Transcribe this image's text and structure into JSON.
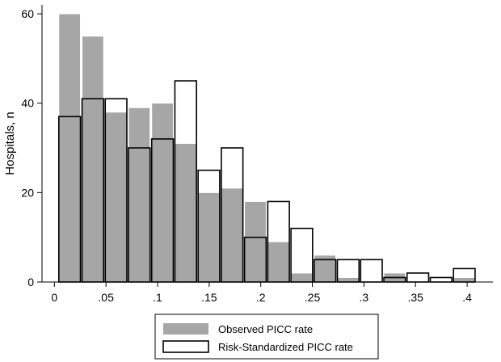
{
  "chart_data": {
    "type": "bar",
    "title": "",
    "xlabel": "",
    "ylabel": "Hospitals, n",
    "xlim": [
      -0.012,
      0.425
    ],
    "ylim": [
      0,
      62
    ],
    "bin_width": 0.0225,
    "bin_start": 0.0035,
    "x_ticks": [
      0,
      0.05,
      0.1,
      0.15,
      0.2,
      0.25,
      0.3,
      0.35,
      0.4
    ],
    "x_tick_labels": [
      "0",
      ".05",
      ".1",
      ".15",
      ".2",
      ".25",
      ".3",
      ".35",
      ".4"
    ],
    "y_ticks": [
      0,
      20,
      40,
      60
    ],
    "y_tick_labels": [
      "0",
      "20",
      "40",
      "60"
    ],
    "grid": false,
    "legend_position": "bottom",
    "series": [
      {
        "name": "Observed PICC rate",
        "color": "#a6a6a6",
        "style": "filled",
        "values": [
          60,
          55,
          38,
          39,
          40,
          31,
          20,
          21,
          18,
          9,
          2,
          6,
          1,
          0,
          2,
          0,
          0,
          1
        ]
      },
      {
        "name": "Risk-Standardized PICC rate",
        "color": "#000000",
        "style": "outline",
        "values": [
          37,
          41,
          41,
          30,
          32,
          45,
          25,
          30,
          10,
          18,
          12,
          5,
          5,
          5,
          1,
          2,
          1,
          3
        ]
      }
    ]
  }
}
